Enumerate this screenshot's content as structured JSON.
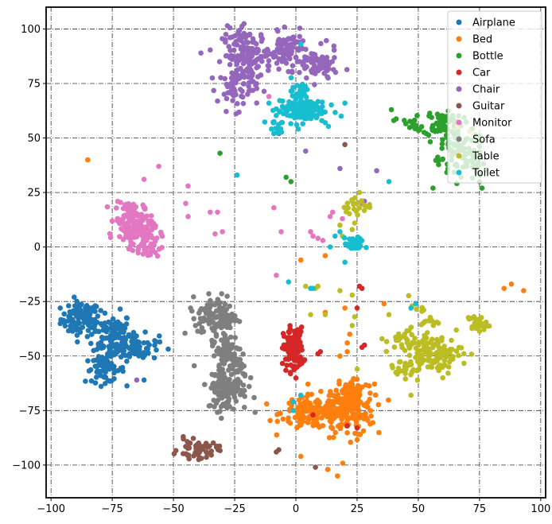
{
  "chart_data": {
    "type": "scatter",
    "title": "",
    "xlabel": "",
    "ylabel": "",
    "xlim": [
      -102,
      102
    ],
    "ylim": [
      -115,
      110
    ],
    "xticks": [
      -100,
      -75,
      -50,
      -25,
      0,
      25,
      50,
      75,
      100
    ],
    "yticks": [
      -100,
      -75,
      -50,
      -25,
      0,
      25,
      50,
      75,
      100
    ],
    "xtick_labels": [
      "−100",
      "−75",
      "−50",
      "−25",
      "0",
      "25",
      "50",
      "75",
      "100"
    ],
    "ytick_labels": [
      "−100",
      "−75",
      "−50",
      "−25",
      "0",
      "25",
      "50",
      "75",
      "100"
    ],
    "grid": true,
    "grid_style": "dash-dot",
    "legend_position": "top-right",
    "series": [
      {
        "name": "Airplane",
        "color": "#1f77b4",
        "clusters": [
          {
            "cx": -88,
            "cy": -33,
            "sx": 4,
            "sy": 4,
            "n": 90
          },
          {
            "cx": -75,
            "cy": -40,
            "sx": 4,
            "sy": 5,
            "n": 110
          },
          {
            "cx": -66,
            "cy": -46,
            "sx": 5,
            "sy": 3,
            "n": 70
          },
          {
            "cx": -78,
            "cy": -56,
            "sx": 4,
            "sy": 3,
            "n": 60
          }
        ],
        "points": [
          [
            -86,
            -28
          ],
          [
            -62,
            -61
          ]
        ]
      },
      {
        "name": "Bed",
        "color": "#ff7f0e",
        "clusters": [
          {
            "cx": 8,
            "cy": -76,
            "sx": 7,
            "sy": 4,
            "n": 160
          },
          {
            "cx": 22,
            "cy": -75,
            "sx": 5,
            "sy": 6,
            "n": 140
          },
          {
            "cx": 24,
            "cy": -66,
            "sx": 4,
            "sy": 3,
            "n": 50
          }
        ],
        "points": [
          [
            -85,
            40
          ],
          [
            2,
            -6
          ],
          [
            12,
            -4
          ],
          [
            36,
            -26
          ],
          [
            88,
            -17
          ],
          [
            93,
            -20
          ],
          [
            85,
            -19
          ],
          [
            21,
            -48
          ],
          [
            18,
            -50
          ],
          [
            13,
            -102
          ],
          [
            17,
            -105
          ],
          [
            2,
            -96
          ],
          [
            12,
            -30
          ],
          [
            20,
            -28
          ],
          [
            22,
            -40
          ],
          [
            21,
            -44
          ]
        ]
      },
      {
        "name": "Bottle",
        "color": "#2ca02c",
        "clusters": [
          {
            "cx": 60,
            "cy": 57,
            "sx": 4,
            "sy": 3,
            "n": 70
          },
          {
            "cx": 64,
            "cy": 47,
            "sx": 5,
            "sy": 4,
            "n": 50
          },
          {
            "cx": 68,
            "cy": 38,
            "sx": 5,
            "sy": 4,
            "n": 40
          },
          {
            "cx": 47,
            "cy": 56,
            "sx": 3,
            "sy": 2,
            "n": 15
          }
        ],
        "points": [
          [
            -31,
            43
          ],
          [
            -4,
            32
          ],
          [
            -2,
            30
          ],
          [
            39,
            63
          ],
          [
            76,
            27
          ],
          [
            75,
            30
          ],
          [
            56,
            27
          ],
          [
            40,
            58
          ]
        ]
      },
      {
        "name": "Car",
        "color": "#d62728",
        "clusters": [
          {
            "cx": -1,
            "cy": -47,
            "sx": 2,
            "sy": 5,
            "n": 120
          }
        ],
        "points": [
          [
            26,
            -18
          ],
          [
            27,
            -19
          ],
          [
            25,
            -28
          ],
          [
            9,
            -49
          ],
          [
            10,
            -48
          ],
          [
            27,
            -46
          ],
          [
            28,
            -45
          ],
          [
            21,
            -82
          ],
          [
            25,
            -83
          ],
          [
            7,
            -77
          ]
        ]
      },
      {
        "name": "Chair",
        "color": "#9467bd",
        "clusters": [
          {
            "cx": -20,
            "cy": 88,
            "sx": 5,
            "sy": 6,
            "n": 160
          },
          {
            "cx": -24,
            "cy": 73,
            "sx": 4,
            "sy": 5,
            "n": 60
          },
          {
            "cx": -3,
            "cy": 90,
            "sx": 4,
            "sy": 4,
            "n": 80
          },
          {
            "cx": 9,
            "cy": 83,
            "sx": 4,
            "sy": 4,
            "n": 70
          }
        ],
        "points": [
          [
            4,
            44
          ],
          [
            -7,
            52
          ],
          [
            18,
            36
          ],
          [
            28,
            21
          ],
          [
            33,
            35
          ],
          [
            27,
            20
          ],
          [
            -65,
            -61
          ]
        ]
      },
      {
        "name": "Guitar",
        "color": "#8c564b",
        "clusters": [
          {
            "cx": -40,
            "cy": -93,
            "sx": 4,
            "sy": 2,
            "n": 50
          }
        ],
        "points": [
          [
            -46,
            -87
          ],
          [
            20,
            47
          ],
          [
            8,
            -101
          ],
          [
            -8,
            -94
          ],
          [
            -7,
            -93
          ]
        ]
      },
      {
        "name": "Monitor",
        "color": "#e377c2",
        "clusters": [
          {
            "cx": -68,
            "cy": 12,
            "sx": 3,
            "sy": 5,
            "n": 110
          },
          {
            "cx": -63,
            "cy": 8,
            "sx": 3,
            "sy": 3,
            "n": 50
          },
          {
            "cx": -61,
            "cy": 0,
            "sx": 3,
            "sy": 3,
            "n": 40
          }
        ],
        "points": [
          [
            -62,
            31
          ],
          [
            -56,
            37
          ],
          [
            -45,
            20
          ],
          [
            -44,
            28
          ],
          [
            -44,
            14
          ],
          [
            -35,
            16
          ],
          [
            -32,
            16
          ],
          [
            -33,
            6
          ],
          [
            -30,
            7
          ],
          [
            -9,
            18
          ],
          [
            -6,
            7
          ],
          [
            -8,
            -13
          ],
          [
            6,
            7
          ],
          [
            7,
            5
          ],
          [
            9,
            4
          ],
          [
            11,
            3
          ],
          [
            14,
            14
          ],
          [
            15,
            16
          ],
          [
            19,
            13
          ],
          [
            -11,
            69
          ]
        ]
      },
      {
        "name": "Sofa",
        "color": "#7f7f7f",
        "clusters": [
          {
            "cx": -32,
            "cy": -32,
            "sx": 4,
            "sy": 5,
            "n": 120
          },
          {
            "cx": -28,
            "cy": -48,
            "sx": 3,
            "sy": 5,
            "n": 70
          },
          {
            "cx": -28,
            "cy": -65,
            "sx": 4,
            "sy": 5,
            "n": 110
          },
          {
            "cx": -24,
            "cy": -56,
            "sx": 2,
            "sy": 3,
            "n": 20
          }
        ],
        "points": [
          [
            -43,
            -28
          ],
          [
            -41,
            -36
          ]
        ]
      },
      {
        "name": "Table",
        "color": "#bcbd22",
        "clusters": [
          {
            "cx": 56,
            "cy": -49,
            "sx": 6,
            "sy": 4,
            "n": 110
          },
          {
            "cx": 45,
            "cy": -43,
            "sx": 4,
            "sy": 3,
            "n": 30
          },
          {
            "cx": 74,
            "cy": -35,
            "sx": 2,
            "sy": 2,
            "n": 30
          },
          {
            "cx": 44,
            "cy": -56,
            "sx": 3,
            "sy": 2,
            "n": 20
          },
          {
            "cx": 52,
            "cy": -33,
            "sx": 3,
            "sy": 3,
            "n": 20
          },
          {
            "cx": 26,
            "cy": 18,
            "sx": 3,
            "sy": 2,
            "n": 20
          }
        ],
        "points": [
          [
            23,
            21
          ],
          [
            26,
            25
          ],
          [
            24,
            11
          ],
          [
            23,
            8
          ],
          [
            18,
            10
          ],
          [
            19,
            5
          ],
          [
            4,
            -18
          ],
          [
            8,
            -19
          ],
          [
            9,
            -18
          ],
          [
            6,
            -31
          ],
          [
            12,
            -31
          ],
          [
            18,
            -20
          ],
          [
            23,
            -22
          ],
          [
            23,
            -36
          ],
          [
            24,
            -32
          ],
          [
            25,
            -56
          ],
          [
            60,
            -60
          ],
          [
            47,
            -68
          ],
          [
            38,
            -31
          ],
          [
            66,
            55
          ],
          [
            71,
            53
          ]
        ]
      },
      {
        "name": "Toilet",
        "color": "#17becf",
        "clusters": [
          {
            "cx": 2,
            "cy": 63,
            "sx": 5,
            "sy": 3,
            "n": 140
          },
          {
            "cx": -9,
            "cy": 56,
            "sx": 2,
            "sy": 2,
            "n": 15
          },
          {
            "cx": 24,
            "cy": 1,
            "sx": 2,
            "sy": 1.5,
            "n": 40
          },
          {
            "cx": 1,
            "cy": 72,
            "sx": 1.5,
            "sy": 3,
            "n": 20
          }
        ],
        "points": [
          [
            2,
            93
          ],
          [
            -24,
            33
          ],
          [
            38,
            30
          ],
          [
            -11,
            66
          ],
          [
            20,
            66
          ],
          [
            16,
            5
          ],
          [
            14,
            0
          ],
          [
            20,
            -7
          ],
          [
            18,
            7
          ],
          [
            6,
            -19
          ],
          [
            7,
            -19
          ],
          [
            47,
            -28
          ],
          [
            49,
            -26
          ],
          [
            -3,
            -16
          ],
          [
            -1,
            -71
          ],
          [
            -1,
            -75
          ],
          [
            2,
            -68
          ],
          [
            -9,
            52
          ],
          [
            12,
            57
          ]
        ]
      }
    ]
  }
}
